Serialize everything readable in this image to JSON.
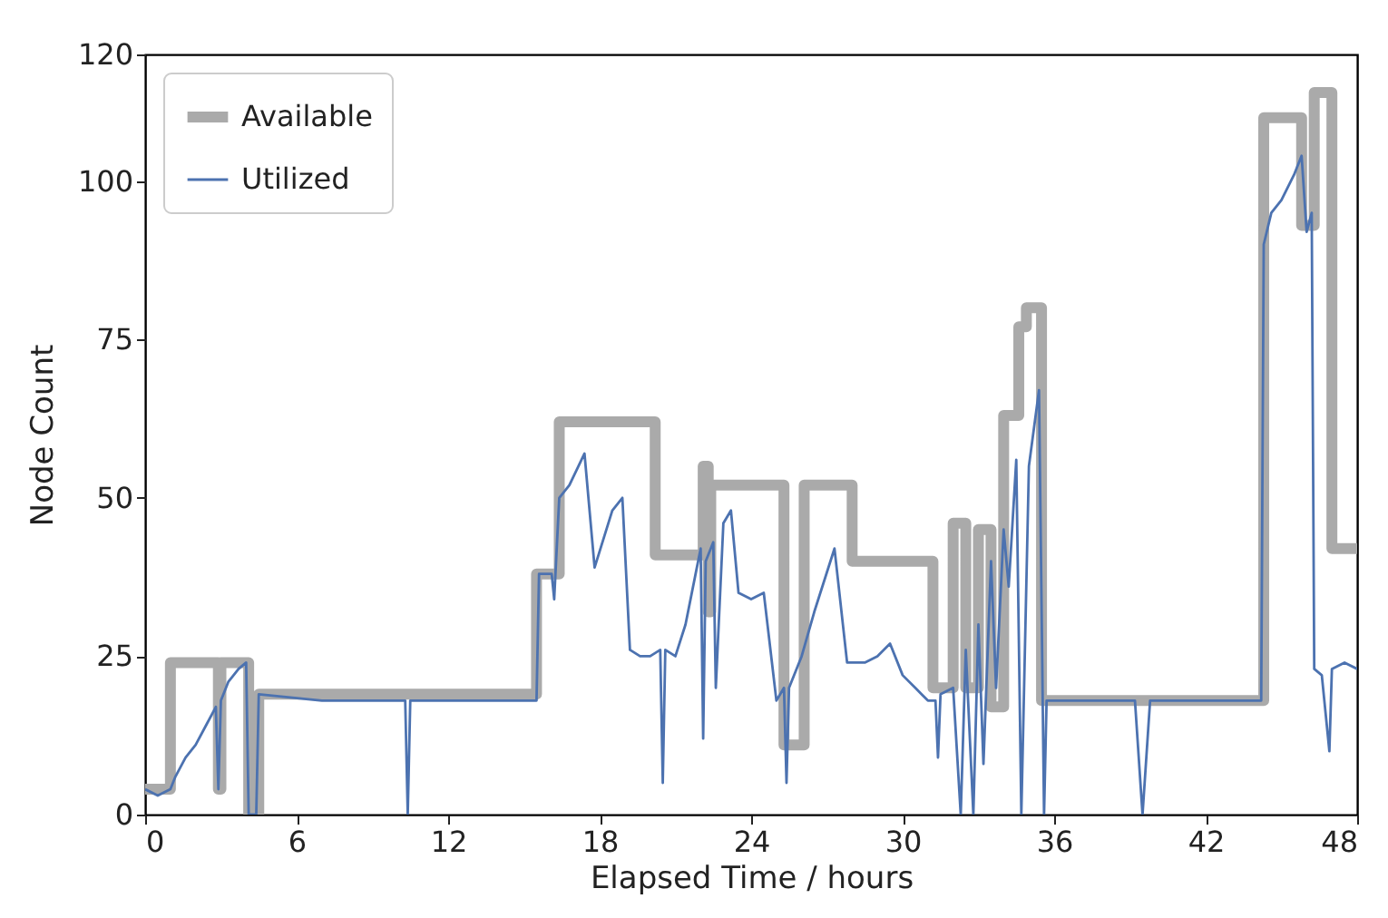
{
  "chart_data": {
    "type": "line",
    "xlabel": "Elapsed Time / hours",
    "ylabel": "Node Count",
    "xlim": [
      0,
      48
    ],
    "ylim": [
      0,
      120
    ],
    "xticks": [
      0,
      6,
      12,
      18,
      24,
      30,
      36,
      42,
      48
    ],
    "yticks": [
      0,
      25,
      50,
      75,
      100,
      120
    ],
    "grid": false,
    "legend": "top left",
    "line_style": "solid",
    "marker": "none",
    "series": [
      {
        "name": "Available",
        "color": "#aaaaaa",
        "x": [
          0,
          1,
          1,
          2.9,
          2.9,
          3.0,
          3.0,
          4.1,
          4.1,
          4.5,
          4.5,
          15.5,
          15.5,
          16.4,
          16.4,
          20.2,
          20.2,
          22.1,
          22.1,
          22.3,
          22.3,
          22.4,
          22.4,
          25.3,
          25.3,
          26.1,
          26.1,
          28,
          28,
          31.2,
          31.2,
          32,
          32,
          32.5,
          32.5,
          33,
          33,
          33.5,
          33.5,
          34,
          34,
          34.6,
          34.6,
          34.9,
          34.9,
          35.5,
          35.5,
          44.3,
          44.3,
          45.8,
          45.8,
          46.3,
          46.3,
          47,
          47,
          48
        ],
        "values": [
          4,
          4,
          24,
          24,
          4,
          4,
          24,
          24,
          0,
          0,
          19,
          19,
          38,
          38,
          62,
          62,
          41,
          41,
          55,
          55,
          32,
          32,
          52,
          52,
          11,
          11,
          52,
          52,
          40,
          40,
          20,
          20,
          46,
          46,
          20,
          20,
          45,
          45,
          17,
          17,
          63,
          63,
          77,
          77,
          80,
          80,
          18,
          18,
          110,
          110,
          93,
          93,
          114,
          114,
          42,
          42
        ]
      },
      {
        "name": "Utilized",
        "color": "#4c72b0",
        "x": [
          0,
          0.5,
          1.0,
          1.2,
          1.6,
          2.0,
          2.4,
          2.8,
          2.9,
          3.0,
          3.3,
          3.7,
          4.0,
          4.1,
          4.4,
          4.5,
          7,
          10.3,
          10.4,
          10.5,
          15.5,
          15.6,
          16.1,
          16.2,
          16.4,
          16.8,
          17.4,
          17.8,
          18.5,
          18.9,
          19.2,
          19.6,
          20.0,
          20.4,
          20.5,
          20.6,
          21,
          21.4,
          21.8,
          22.0,
          22.1,
          22.2,
          22.5,
          22.6,
          22.9,
          23.2,
          23.5,
          24,
          24.5,
          25,
          25.3,
          25.4,
          25.5,
          26,
          26.5,
          27.3,
          27.8,
          28.5,
          29,
          29.5,
          30,
          30.5,
          31,
          31.3,
          31.4,
          31.5,
          32,
          32.3,
          32.5,
          32.8,
          33,
          33.2,
          33.5,
          33.7,
          34,
          34.2,
          34.5,
          34.7,
          35,
          35.4,
          35.6,
          35.7,
          39.2,
          39.5,
          39.8,
          44.2,
          44.3,
          44.6,
          45,
          45.5,
          45.8,
          46,
          46.2,
          46.3,
          46.6,
          46.9,
          47.0,
          47.5,
          48
        ],
        "values": [
          4,
          3,
          4,
          6,
          9,
          11,
          14,
          17,
          4,
          18,
          21,
          23,
          24,
          0,
          0,
          19,
          18,
          18,
          0,
          18,
          18,
          38,
          38,
          34,
          50,
          52,
          57,
          39,
          48,
          50,
          26,
          25,
          25,
          26,
          5,
          26,
          25,
          30,
          38,
          42,
          12,
          40,
          43,
          20,
          46,
          48,
          35,
          34,
          35,
          18,
          20,
          5,
          20,
          25,
          32,
          42,
          24,
          24,
          25,
          27,
          22,
          20,
          18,
          18,
          9,
          19,
          20,
          0,
          26,
          0,
          30,
          8,
          40,
          20,
          45,
          36,
          56,
          0,
          55,
          67,
          0,
          18,
          18,
          0,
          18,
          18,
          90,
          95,
          97,
          101,
          104,
          92,
          95,
          23,
          22,
          10,
          23,
          24,
          23
        ]
      }
    ]
  }
}
